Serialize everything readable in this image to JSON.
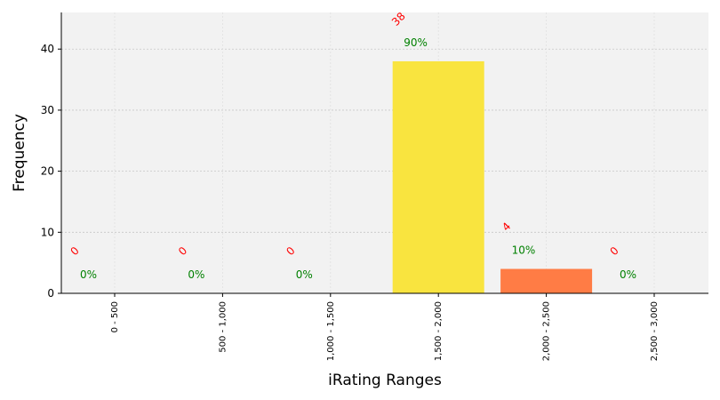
{
  "chart_data": {
    "type": "bar",
    "categories": [
      "0 - 500",
      "500 - 1,000",
      "1,000 - 1,500",
      "1,500 - 2,000",
      "2,000 - 2,500",
      "2,500 - 3,000"
    ],
    "values": [
      0,
      0,
      0,
      38,
      4,
      0
    ],
    "count_labels": [
      "0",
      "0",
      "0",
      "38",
      "4",
      "0"
    ],
    "percent_labels": [
      "0%",
      "0%",
      "0%",
      "90%",
      "10%",
      "0%"
    ],
    "bar_colors": [
      "#ffd700",
      "#ffd700",
      "#ffd700",
      "#f9e43f",
      "#ff7c45",
      "#ffd700"
    ],
    "xlabel": "iRating Ranges",
    "ylabel": "Frequency",
    "ylim": [
      0,
      46
    ],
    "yticks": [
      "0",
      "10",
      "20",
      "30",
      "40"
    ],
    "grid": true,
    "count_label_color": "#ff0000",
    "percent_label_color": "#008000",
    "background_color": "#f2f2f2"
  }
}
